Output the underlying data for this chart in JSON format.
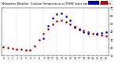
{
  "title": "Milwaukee Weather  Outdoor Temperature vs THSW Index per Hour (24 Hours)",
  "hours": [
    0,
    1,
    2,
    3,
    4,
    5,
    6,
    7,
    8,
    9,
    10,
    11,
    12,
    13,
    14,
    15,
    16,
    17,
    18,
    19,
    20,
    21,
    22,
    23
  ],
  "temp": [
    21,
    20,
    19,
    18,
    18,
    17,
    17,
    22,
    30,
    38,
    44,
    50,
    54,
    55,
    53,
    50,
    47,
    44,
    42,
    40,
    38,
    37,
    36,
    35
  ],
  "thsw": [
    null,
    null,
    null,
    null,
    null,
    null,
    null,
    null,
    null,
    32,
    48,
    58,
    63,
    64,
    60,
    55,
    46,
    43,
    40,
    38,
    null,
    38,
    39,
    40
  ],
  "temp_color": "#cc0000",
  "thsw_color": "#0000cc",
  "bg_color": "#ffffff",
  "grid_color": "#aaaaaa",
  "ylim_min": 10,
  "ylim_max": 70,
  "yticks": [
    10,
    20,
    30,
    40,
    50,
    60,
    70
  ],
  "marker_size": 1.8,
  "vgrid_positions": [
    0,
    3,
    6,
    9,
    12,
    15,
    18,
    21,
    23
  ]
}
